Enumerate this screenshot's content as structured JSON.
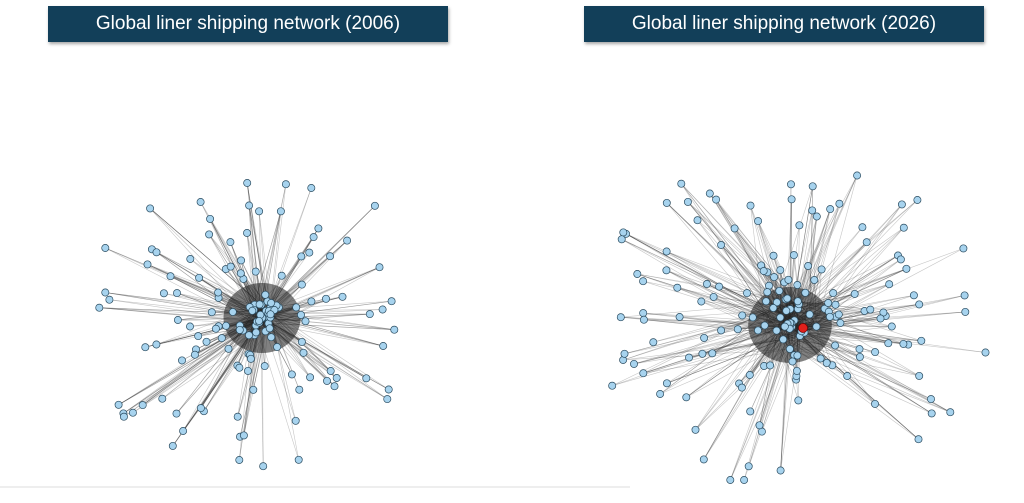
{
  "panels": [
    {
      "title": "Global liner shipping network (2006)"
    },
    {
      "title": "Global liner shipping network (2026)"
    }
  ]
}
